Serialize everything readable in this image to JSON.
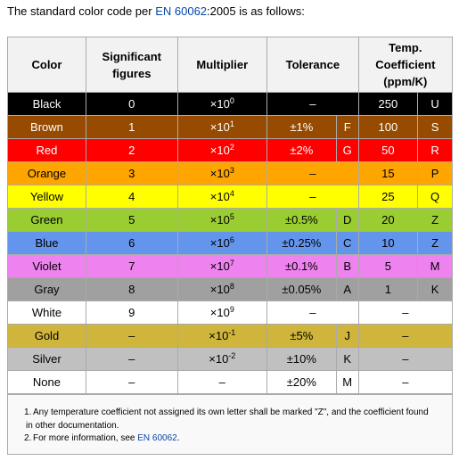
{
  "intro": {
    "before": "The standard color code per ",
    "link": "EN 60062",
    "after": ":2005 is as follows:"
  },
  "table": {
    "headers": [
      "Color",
      "Significant figures",
      "Multiplier",
      "Tolerance",
      "Temp. Coefficient (ppm/K)"
    ],
    "rows": [
      {
        "color": "Black",
        "bg": "#000000",
        "fg": "#ffffff",
        "figures": "0",
        "multiplier": {
          "base": "×10",
          "exp": "0"
        },
        "tolerance": "–",
        "tol_code": null,
        "temp": "250",
        "temp_code": "U"
      },
      {
        "color": "Brown",
        "bg": "#964b00",
        "fg": "#ffffff",
        "figures": "1",
        "multiplier": {
          "base": "×10",
          "exp": "1"
        },
        "tolerance": "±1%",
        "tol_code": "F",
        "temp": "100",
        "temp_code": "S"
      },
      {
        "color": "Red",
        "bg": "#ff0000",
        "fg": "#ffffff",
        "figures": "2",
        "multiplier": {
          "base": "×10",
          "exp": "2"
        },
        "tolerance": "±2%",
        "tol_code": "G",
        "temp": "50",
        "temp_code": "R"
      },
      {
        "color": "Orange",
        "bg": "#ffa500",
        "fg": "#000000",
        "figures": "3",
        "multiplier": {
          "base": "×10",
          "exp": "3"
        },
        "tolerance": "–",
        "tol_code": null,
        "temp": "15",
        "temp_code": "P"
      },
      {
        "color": "Yellow",
        "bg": "#ffff00",
        "fg": "#000000",
        "figures": "4",
        "multiplier": {
          "base": "×10",
          "exp": "4"
        },
        "tolerance": "–",
        "tol_code": null,
        "temp": "25",
        "temp_code": "Q"
      },
      {
        "color": "Green",
        "bg": "#9acd32",
        "fg": "#000000",
        "figures": "5",
        "multiplier": {
          "base": "×10",
          "exp": "5"
        },
        "tolerance": "±0.5%",
        "tol_code": "D",
        "temp": "20",
        "temp_code": "Z"
      },
      {
        "color": "Blue",
        "bg": "#6495ed",
        "fg": "#000000",
        "figures": "6",
        "multiplier": {
          "base": "×10",
          "exp": "6"
        },
        "tolerance": "±0.25%",
        "tol_code": "C",
        "temp": "10",
        "temp_code": "Z"
      },
      {
        "color": "Violet",
        "bg": "#ee82ee",
        "fg": "#000000",
        "figures": "7",
        "multiplier": {
          "base": "×10",
          "exp": "7"
        },
        "tolerance": "±0.1%",
        "tol_code": "B",
        "temp": "5",
        "temp_code": "M"
      },
      {
        "color": "Gray",
        "bg": "#a0a0a0",
        "fg": "#000000",
        "figures": "8",
        "multiplier": {
          "base": "×10",
          "exp": "8"
        },
        "tolerance": "±0.05%",
        "tol_code": "A",
        "temp": "1",
        "temp_code": "K"
      },
      {
        "color": "White",
        "bg": "#ffffff",
        "fg": "#000000",
        "figures": "9",
        "multiplier": {
          "base": "×10",
          "exp": "9"
        },
        "tolerance": "–",
        "tol_code": null,
        "temp": "–",
        "temp_code": null
      },
      {
        "color": "Gold",
        "bg": "#cfb53b",
        "fg": "#000000",
        "figures": "–",
        "multiplier": {
          "base": "×10",
          "exp": "-1"
        },
        "tolerance": "±5%",
        "tol_code": "J",
        "temp": "–",
        "temp_code": null
      },
      {
        "color": "Silver",
        "bg": "#c0c0c0",
        "fg": "#000000",
        "figures": "–",
        "multiplier": {
          "base": "×10",
          "exp": "-2"
        },
        "tolerance": "±10%",
        "tol_code": "K",
        "temp": "–",
        "temp_code": null
      },
      {
        "color": "None",
        "bg": "#ffffff",
        "fg": "#000000",
        "figures": "–",
        "multiplier": {
          "base": "–",
          "exp": null
        },
        "tolerance": "±20%",
        "tol_code": "M",
        "temp": "–",
        "temp_code": null
      }
    ]
  },
  "notes": [
    {
      "number": "1.",
      "text": "Any temperature coefficient not assigned its own letter shall be marked \"Z\", and the coefficient found in other documentation."
    },
    {
      "number": "2.",
      "text": "For more information, see ",
      "link": "EN 60062",
      "after": "."
    }
  ]
}
